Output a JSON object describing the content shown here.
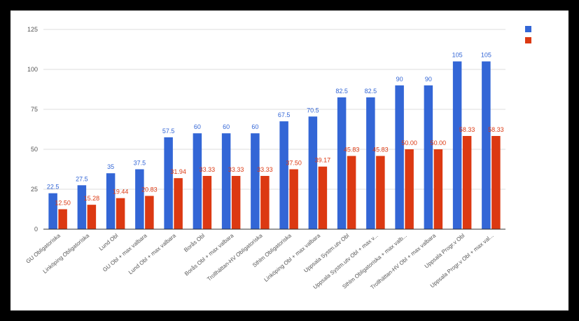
{
  "chart_data": {
    "type": "bar",
    "categories": [
      "GU Obligatoriska",
      "Linköping Obligatoriska",
      "Lund Obl",
      "GU Obl + max valbara",
      "Lund Obl + max valbara",
      "Borås Obl",
      "Borås Obl + max valbara",
      "Trollhättan-HV Obligatoriska",
      "Sthlm Obligatoriska",
      "Linköping Obl + max valbara",
      "Uppsala Systm.utv Obl",
      "Uppsala Systm.utv Obl + max v...",
      "Sthlm Obligatoriska + max valb...",
      "Trollhättan-HV Obl + max valbara",
      "Uppsala Progr.v Obl",
      "Uppsala Progr.v Obl + max val..."
    ],
    "series": [
      {
        "color": "#3366d6",
        "values": [
          22.5,
          27.5,
          35,
          37.5,
          57.5,
          60,
          60,
          60,
          67.5,
          70.5,
          82.5,
          82.5,
          90,
          90,
          105,
          105
        ],
        "labels": [
          "22.5",
          "27.5",
          "35",
          "37.5",
          "57.5",
          "60",
          "60",
          "60",
          "67.5",
          "70.5",
          "82.5",
          "82.5",
          "90",
          "90",
          "105",
          "105"
        ]
      },
      {
        "color": "#dc3912",
        "values": [
          12.5,
          15.28,
          19.44,
          20.83,
          31.94,
          33.33,
          33.33,
          33.33,
          37.5,
          39.17,
          45.83,
          45.83,
          50,
          50,
          58.33,
          58.33
        ],
        "labels": [
          "12.50",
          "15.28",
          "19.44",
          "20.83",
          "31.94",
          "33.33",
          "33.33",
          "33.33",
          "37.50",
          "39.17",
          "45.83",
          "45.83",
          "50.00",
          "50.00",
          "58.33",
          "58.33"
        ]
      }
    ],
    "yticks": [
      "0",
      "25",
      "50",
      "75",
      "100",
      "125"
    ],
    "ylim": [
      0,
      125
    ],
    "grid": true,
    "legend": "top-right"
  }
}
